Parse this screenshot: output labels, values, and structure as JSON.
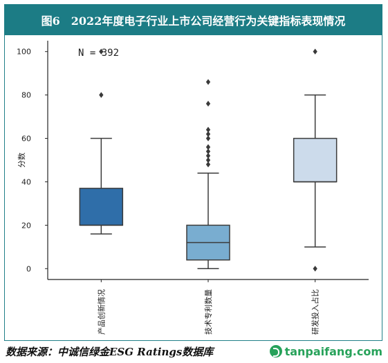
{
  "figure": {
    "title": "图6　2022年度电子行业上市公司经营行为关键指标表现情况",
    "note": "N = 392",
    "source": "数据来源：中诚信绿金ESG Ratings数据库",
    "brand": "tanpaifang.com",
    "colors": {
      "title_bg": "#1c7c85",
      "border": "#1f7f87",
      "box_1": "#2f6ea9",
      "box_2": "#79add0",
      "box_3": "#ccdbeb",
      "line": "#3a3a3a",
      "brand": "#27a25a"
    }
  },
  "chart_data": {
    "type": "boxplot",
    "ylabel": "分数",
    "xlabel": "",
    "ylim": [
      -5,
      105
    ],
    "yticks": [
      0,
      20,
      40,
      60,
      80,
      100
    ],
    "grid": false,
    "categories": [
      "产品创新情况",
      "技术专利数量",
      "研发投入占比"
    ],
    "boxes": [
      {
        "category": "产品创新情况",
        "whisker_low": 16,
        "q1": 20,
        "median": 20,
        "q3": 37,
        "whisker_high": 60,
        "outliers": [
          80,
          100
        ],
        "color": "#2f6ea9"
      },
      {
        "category": "技术专利数量",
        "whisker_low": 0,
        "q1": 4,
        "median": 12,
        "q3": 20,
        "whisker_high": 44,
        "outliers": [
          48,
          50,
          52,
          54,
          56,
          60,
          62,
          64,
          76,
          86
        ],
        "color": "#79add0"
      },
      {
        "category": "研发投入占比",
        "whisker_low": 10,
        "q1": 40,
        "median": 40,
        "q3": 60,
        "whisker_high": 80,
        "outliers": [
          0,
          100
        ],
        "color": "#ccdbeb"
      }
    ]
  }
}
